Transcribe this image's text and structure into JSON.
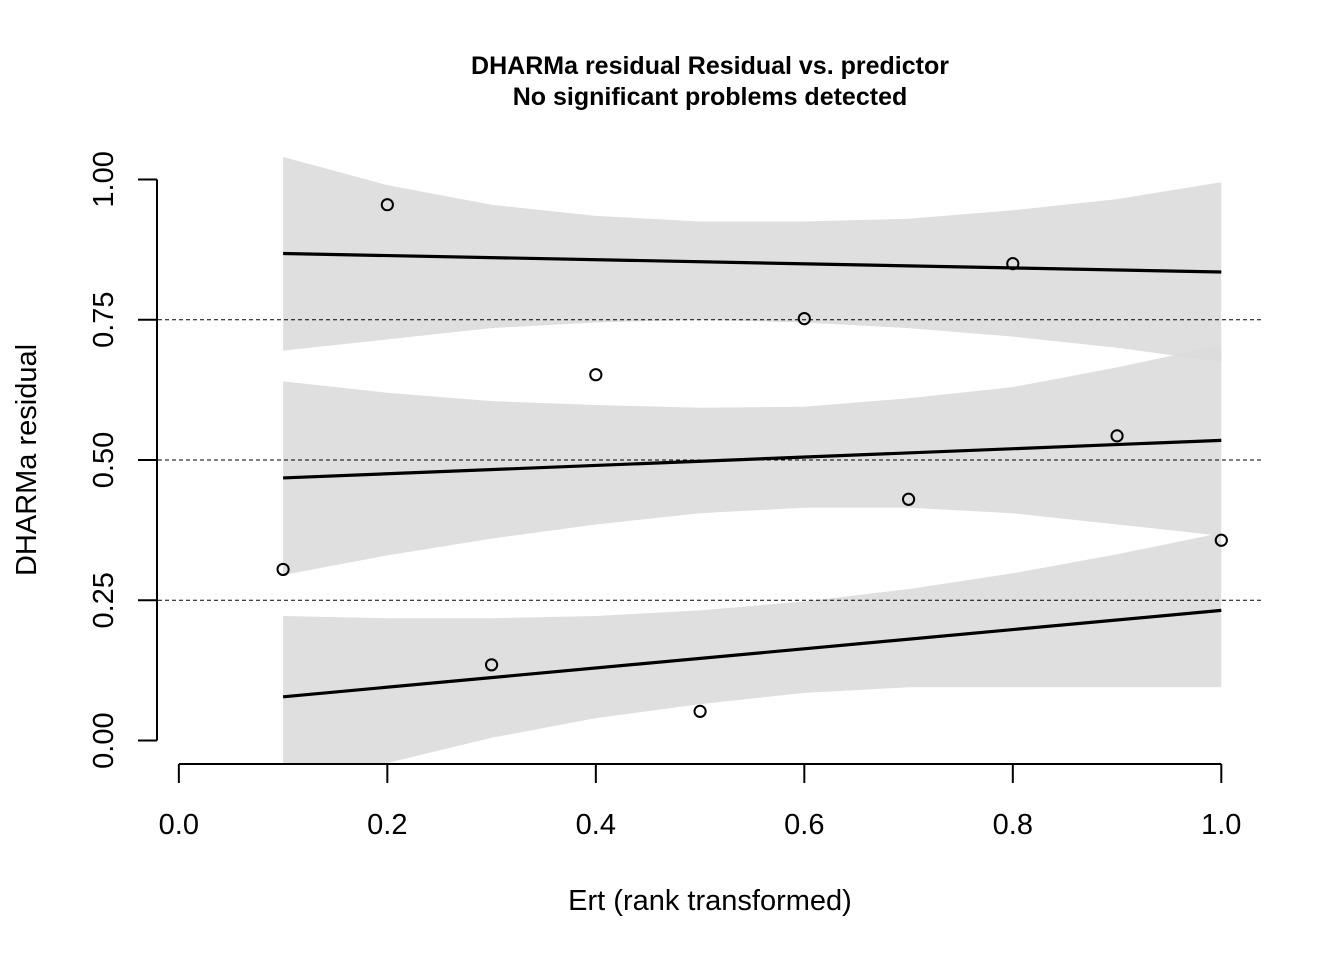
{
  "chart_data": {
    "type": "scatter",
    "title": "DHARMa residual Residual vs. predictor",
    "subtitle": "No significant problems detected",
    "xlabel": "Ert (rank transformed)",
    "ylabel": "DHARMa residual",
    "xlim": [
      -0.02,
      1.04
    ],
    "ylim": [
      -0.04,
      1.04
    ],
    "x_ticks": [
      0.0,
      0.2,
      0.4,
      0.6,
      0.8,
      1.0
    ],
    "x_tick_labels": [
      "0.0",
      "0.2",
      "0.4",
      "0.6",
      "0.8",
      "1.0"
    ],
    "y_ticks": [
      0.0,
      0.25,
      0.5,
      0.75,
      1.0
    ],
    "y_tick_labels": [
      "0.00",
      "0.25",
      "0.50",
      "0.75",
      "1.00"
    ],
    "reference_lines": [
      0.25,
      0.5,
      0.75
    ],
    "points": [
      {
        "x": 0.1,
        "y": 0.305
      },
      {
        "x": 0.2,
        "y": 0.955
      },
      {
        "x": 0.3,
        "y": 0.135
      },
      {
        "x": 0.4,
        "y": 0.652
      },
      {
        "x": 0.5,
        "y": 0.052
      },
      {
        "x": 0.6,
        "y": 0.752
      },
      {
        "x": 0.7,
        "y": 0.43
      },
      {
        "x": 0.8,
        "y": 0.85
      },
      {
        "x": 0.9,
        "y": 0.543
      },
      {
        "x": 1.0,
        "y": 0.357
      }
    ],
    "quantile_fits": [
      {
        "quantile": 0.75,
        "line": [
          [
            0.1,
            0.868
          ],
          [
            1.0,
            0.835
          ]
        ],
        "band_x": [
          0.1,
          0.2,
          0.3,
          0.4,
          0.5,
          0.6,
          0.7,
          0.8,
          0.9,
          1.0
        ],
        "band_upper": [
          1.04,
          0.99,
          0.955,
          0.935,
          0.925,
          0.925,
          0.93,
          0.945,
          0.965,
          0.995
        ],
        "band_lower": [
          0.695,
          0.715,
          0.735,
          0.745,
          0.75,
          0.745,
          0.735,
          0.72,
          0.7,
          0.675
        ]
      },
      {
        "quantile": 0.5,
        "line": [
          [
            0.1,
            0.468
          ],
          [
            1.0,
            0.535
          ]
        ],
        "band_x": [
          0.1,
          0.2,
          0.3,
          0.4,
          0.5,
          0.6,
          0.7,
          0.8,
          0.9,
          1.0
        ],
        "band_upper": [
          0.64,
          0.62,
          0.605,
          0.598,
          0.593,
          0.595,
          0.61,
          0.63,
          0.665,
          0.705
        ],
        "band_lower": [
          0.295,
          0.33,
          0.36,
          0.385,
          0.405,
          0.415,
          0.415,
          0.405,
          0.385,
          0.365
        ]
      },
      {
        "quantile": 0.25,
        "line": [
          [
            0.1,
            0.078
          ],
          [
            1.0,
            0.232
          ]
        ],
        "band_x": [
          0.1,
          0.2,
          0.3,
          0.4,
          0.5,
          0.6,
          0.7,
          0.8,
          0.9,
          1.0
        ],
        "band_upper": [
          0.222,
          0.218,
          0.218,
          0.222,
          0.232,
          0.248,
          0.27,
          0.298,
          0.332,
          0.37
        ],
        "band_lower": [
          -0.04,
          -0.04,
          0.005,
          0.04,
          0.065,
          0.085,
          0.095,
          0.095,
          0.095,
          0.095
        ]
      }
    ],
    "colors": {
      "band": "#dcdcdc",
      "band_overlap": "#c4c4c4",
      "line": "#000000",
      "point": "#000000",
      "reference": "#000000"
    },
    "grid": false,
    "legend": "none"
  }
}
